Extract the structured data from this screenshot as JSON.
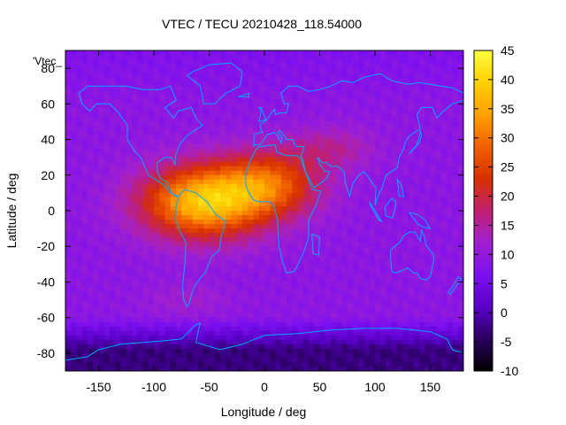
{
  "chart_data": {
    "type": "heatmap",
    "title": "VTEC / TECU 20210428_118.54000",
    "xlabel": "Longitude / deg",
    "ylabel": "Latitude / deg",
    "xlim": [
      -180,
      180
    ],
    "ylim": [
      -90,
      90
    ],
    "x_ticks": [
      -150,
      -100,
      -50,
      0,
      50,
      100,
      150
    ],
    "y_ticks": [
      -80,
      -60,
      -40,
      -20,
      0,
      20,
      40,
      60,
      80
    ],
    "colorbar": {
      "range": [
        -10,
        45
      ],
      "ticks": [
        -10,
        -5,
        0,
        5,
        10,
        15,
        20,
        25,
        30,
        35,
        40,
        45
      ],
      "palette": [
        "#000000",
        "#2a0060",
        "#5a00c8",
        "#7c10f0",
        "#a020d0",
        "#c02070",
        "#d83000",
        "#f06000",
        "#ffa000",
        "#ffd000",
        "#ffff40"
      ]
    },
    "key_label": "'Vtec_",
    "coastline_color": "#00a8ff",
    "field_description": {
      "background_tecu": 9,
      "equatorial_peak": {
        "lon": -55,
        "lat": 5,
        "value_tecu": 38
      },
      "secondary_peak": {
        "lon": 5,
        "lat": 15,
        "value_tecu": 34
      },
      "antarctic_minimum_tecu": -3
    }
  }
}
